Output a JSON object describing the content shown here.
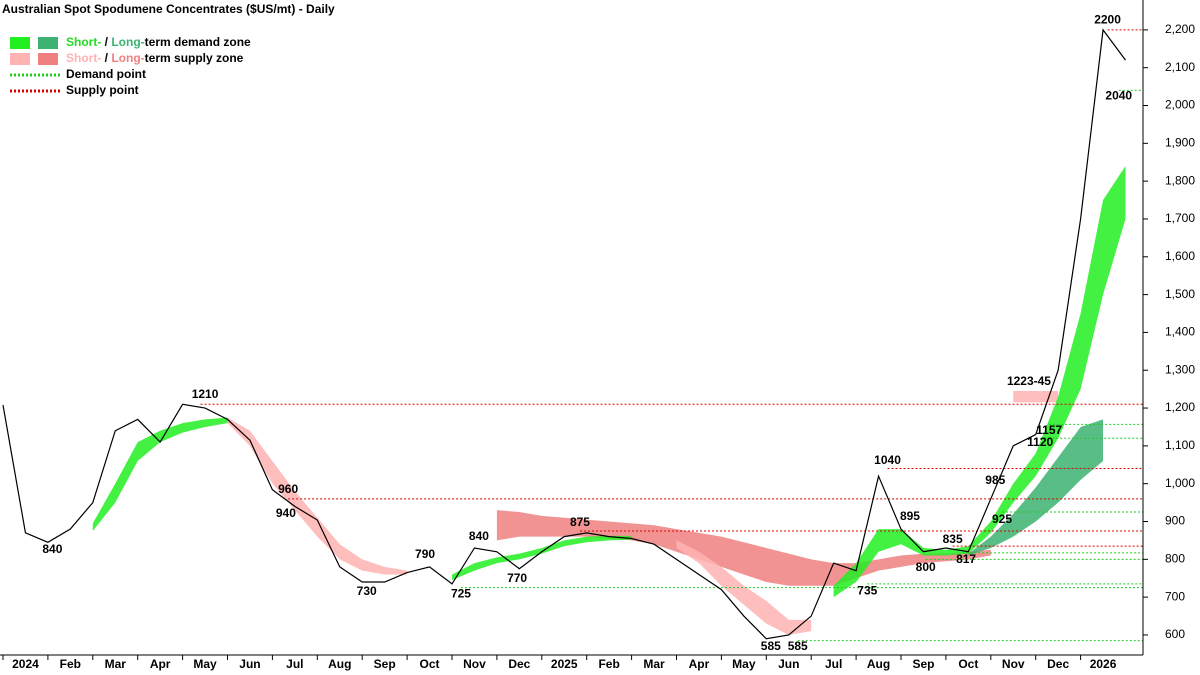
{
  "chart_data": {
    "type": "line",
    "title": "Australian Spot Spodumene Concentrates ($US/mt) - Daily",
    "categories": [
      "2024",
      null,
      "Feb",
      null,
      "Mar",
      null,
      "Apr",
      null,
      "May",
      null,
      "Jun",
      null,
      "Jul",
      null,
      "Aug",
      null,
      "Sep",
      null,
      "Oct",
      null,
      "Nov",
      null,
      "Dec",
      null,
      "2025",
      null,
      "Feb",
      null,
      "Mar",
      null,
      "Apr",
      null,
      "May",
      null,
      "Jun",
      null,
      "Jul",
      null,
      "Aug",
      null,
      "Sep",
      null,
      "Oct",
      null,
      "Nov",
      null,
      "Dec",
      null,
      "2026",
      null,
      null
    ],
    "price": {
      "color": "#000000",
      "values": [
        1208,
        870,
        845,
        880,
        950,
        1140,
        1170,
        1110,
        1210,
        1200,
        1170,
        1115,
        984,
        940,
        904,
        780,
        740,
        740,
        765,
        780,
        735,
        830,
        820,
        775,
        820,
        860,
        870,
        860,
        855,
        840,
        800,
        760,
        720,
        650,
        590,
        600,
        650,
        790,
        770,
        1020,
        880,
        820,
        830,
        820,
        960,
        1100,
        1130,
        1300,
        1700,
        2200,
        2120
      ]
    },
    "zones": [
      {
        "color": "#f08080",
        "lower": [
          null,
          null,
          null,
          null,
          null,
          null,
          null,
          null,
          null,
          null,
          null,
          null,
          null,
          null,
          null,
          null,
          null,
          null,
          null,
          null,
          null,
          null,
          850,
          860,
          860,
          860,
          860,
          855,
          850,
          840,
          820,
          800,
          780,
          760,
          740,
          730,
          730,
          730,
          750,
          770,
          780,
          790,
          795,
          800,
          810,
          null,
          null,
          null,
          null,
          null,
          null
        ],
        "upper": [
          null,
          null,
          null,
          null,
          null,
          null,
          null,
          null,
          null,
          null,
          null,
          null,
          null,
          null,
          null,
          null,
          null,
          null,
          null,
          null,
          null,
          null,
          930,
          925,
          915,
          910,
          905,
          900,
          895,
          890,
          880,
          870,
          860,
          845,
          830,
          815,
          800,
          790,
          790,
          800,
          810,
          815,
          815,
          820,
          825,
          null,
          null,
          null,
          null,
          null,
          null
        ]
      },
      {
        "color": "#ffb3b3",
        "lower": [
          null,
          null,
          null,
          null,
          null,
          null,
          null,
          null,
          null,
          null,
          1160,
          1100,
          1000,
          930,
          860,
          800,
          770,
          760,
          760,
          null,
          null,
          null,
          null,
          null,
          null,
          null,
          null,
          null,
          null,
          null,
          830,
          790,
          730,
          680,
          630,
          600,
          610,
          null,
          null,
          null,
          null,
          null,
          null,
          null,
          null,
          1215,
          1215,
          1215,
          null,
          null,
          null
        ],
        "upper": [
          null,
          null,
          null,
          null,
          null,
          null,
          null,
          null,
          null,
          null,
          1175,
          1140,
          1060,
          980,
          910,
          840,
          800,
          780,
          770,
          null,
          null,
          null,
          null,
          null,
          null,
          null,
          null,
          null,
          null,
          null,
          850,
          820,
          780,
          730,
          690,
          640,
          640,
          null,
          null,
          null,
          null,
          null,
          null,
          null,
          null,
          1245,
          1245,
          1245,
          null,
          null,
          null
        ]
      },
      {
        "color": "#3cb371",
        "lower": [
          null,
          null,
          null,
          null,
          null,
          null,
          null,
          null,
          null,
          null,
          null,
          null,
          null,
          null,
          null,
          null,
          null,
          null,
          null,
          null,
          null,
          null,
          null,
          null,
          null,
          null,
          null,
          null,
          null,
          null,
          null,
          null,
          null,
          null,
          null,
          null,
          null,
          null,
          null,
          null,
          null,
          null,
          null,
          810,
          830,
          860,
          900,
          950,
          1010,
          1060,
          null
        ],
        "upper": [
          null,
          null,
          null,
          null,
          null,
          null,
          null,
          null,
          null,
          null,
          null,
          null,
          null,
          null,
          null,
          null,
          null,
          null,
          null,
          null,
          null,
          null,
          null,
          null,
          null,
          null,
          null,
          null,
          null,
          null,
          null,
          null,
          null,
          null,
          null,
          null,
          null,
          null,
          null,
          null,
          null,
          null,
          null,
          815,
          860,
          920,
          990,
          1070,
          1150,
          1170,
          null
        ]
      },
      {
        "color": "#22ee22",
        "lower": [
          null,
          null,
          null,
          null,
          875,
          950,
          1060,
          1110,
          1135,
          1150,
          1160,
          null,
          null,
          null,
          null,
          null,
          null,
          null,
          null,
          null,
          745,
          770,
          790,
          800,
          815,
          835,
          845,
          850,
          852,
          null,
          null,
          null,
          null,
          null,
          null,
          null,
          null,
          700,
          740,
          820,
          840,
          810,
          810,
          815,
          870,
          950,
          1020,
          1120,
          1250,
          1500,
          1700
        ],
        "upper": [
          null,
          null,
          null,
          null,
          895,
          1000,
          1110,
          1140,
          1160,
          1170,
          1175,
          null,
          null,
          null,
          null,
          null,
          null,
          null,
          null,
          null,
          760,
          790,
          805,
          815,
          830,
          850,
          860,
          862,
          862,
          null,
          null,
          null,
          null,
          null,
          null,
          null,
          null,
          730,
          790,
          880,
          880,
          830,
          825,
          835,
          900,
          1000,
          1080,
          1230,
          1450,
          1750,
          1840
        ]
      }
    ],
    "supply_points": {
      "color": "#dd0000",
      "levels": [
        {
          "value": 2200,
          "start": 49.2
        },
        {
          "value": 1210,
          "start": 8.8
        },
        {
          "value": 1040,
          "start": 39.4
        },
        {
          "value": 960,
          "start": 12.7
        },
        {
          "value": 875,
          "start": 25.7
        },
        {
          "value": 835,
          "start": 42.3
        }
      ]
    },
    "demand_points": {
      "color": "#22cc22",
      "levels": [
        {
          "value": 2040,
          "start": 49.7
        },
        {
          "value": 1157,
          "start": 46.6
        },
        {
          "value": 1120,
          "start": 46.2
        },
        {
          "value": 925,
          "start": 44.5
        },
        {
          "value": 817,
          "start": 42.9
        },
        {
          "value": 800,
          "start": 41.1
        },
        {
          "value": 735,
          "start": 38.5
        },
        {
          "value": 725,
          "start": 20.4
        },
        {
          "value": 585,
          "start": 35.4
        }
      ]
    },
    "annotations": [
      {
        "text": "840",
        "at": 2.2,
        "y": 825
      },
      {
        "text": "1210",
        "at": 9.0,
        "y": 1235
      },
      {
        "text": "960",
        "at": 12.7,
        "y": 984
      },
      {
        "text": "940",
        "at": 12.6,
        "y": 920
      },
      {
        "text": "730",
        "at": 16.2,
        "y": 714
      },
      {
        "text": "790",
        "at": 18.8,
        "y": 812
      },
      {
        "text": "725",
        "at": 20.4,
        "y": 708
      },
      {
        "text": "840",
        "at": 21.2,
        "y": 859
      },
      {
        "text": "770",
        "at": 22.9,
        "y": 748
      },
      {
        "text": "875",
        "at": 25.7,
        "y": 896
      },
      {
        "text": "585",
        "at": 34.2,
        "y": 568
      },
      {
        "text": "585",
        "at": 35.4,
        "y": 568
      },
      {
        "text": "735",
        "at": 38.5,
        "y": 716
      },
      {
        "text": "1040",
        "at": 39.4,
        "y": 1060
      },
      {
        "text": "895",
        "at": 40.4,
        "y": 912
      },
      {
        "text": "800",
        "at": 41.1,
        "y": 777
      },
      {
        "text": "835",
        "at": 42.3,
        "y": 851
      },
      {
        "text": "817",
        "at": 42.9,
        "y": 798
      },
      {
        "text": "985",
        "at": 44.2,
        "y": 1007
      },
      {
        "text": "925",
        "at": 44.5,
        "y": 904
      },
      {
        "text": "1223-45",
        "at": 45.7,
        "y": 1269
      },
      {
        "text": "1157",
        "at": 46.6,
        "y": 1140
      },
      {
        "text": "1120",
        "at": 46.2,
        "y": 1108
      },
      {
        "text": "2200",
        "at": 49.2,
        "y": 2225
      },
      {
        "text": "2040",
        "at": 49.7,
        "y": 2024
      }
    ],
    "legend": [
      {
        "swatches": [
          "#22ee22",
          "#3cb371"
        ],
        "parts": [
          {
            "text": "Short-",
            "color": "#22dd22"
          },
          {
            "text": " / ",
            "color": "#000000"
          },
          {
            "text": "Long-",
            "color": "#3cb371"
          },
          {
            "text": "term demand zone",
            "color": "#000000"
          }
        ]
      },
      {
        "swatches": [
          "#ffb3b3",
          "#f08080"
        ],
        "parts": [
          {
            "text": "Short-",
            "color": "#ffb3b3"
          },
          {
            "text": " / ",
            "color": "#000000"
          },
          {
            "text": "Long-",
            "color": "#f08080"
          },
          {
            "text": "term supply zone",
            "color": "#000000"
          }
        ]
      },
      {
        "dotted": "#22cc22",
        "parts": [
          {
            "text": "Demand point",
            "color": "#000000"
          }
        ]
      },
      {
        "dotted": "#dd0000",
        "parts": [
          {
            "text": "Supply point",
            "color": "#000000"
          }
        ]
      }
    ],
    "ylim": [
      547,
      2279
    ],
    "yticks": [
      600,
      700,
      800,
      900,
      {
        "value": 1000,
        "label": "1,000"
      },
      {
        "value": 1100,
        "label": "1,100"
      },
      {
        "value": 1200,
        "label": "1,200"
      },
      {
        "value": 1300,
        "label": "1,300"
      },
      {
        "value": 1400,
        "label": "1,400"
      },
      {
        "value": 1500,
        "label": "1,500"
      },
      {
        "value": 1600,
        "label": "1,600"
      },
      {
        "value": 1700,
        "label": "1,700"
      },
      {
        "value": 1800,
        "label": "1,800"
      },
      {
        "value": 1900,
        "label": "1,900"
      },
      {
        "value": 2000,
        "label": "2,000"
      },
      {
        "value": 2100,
        "label": "2,100"
      },
      {
        "value": 2200,
        "label": "2,200"
      }
    ]
  }
}
